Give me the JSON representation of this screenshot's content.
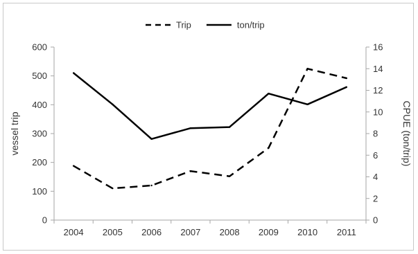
{
  "chart_data": {
    "type": "line",
    "categories": [
      "2004",
      "2005",
      "2006",
      "2007",
      "2008",
      "2009",
      "2010",
      "2011"
    ],
    "y_left": {
      "label": "vessel trip",
      "range": [
        0,
        600
      ],
      "ticks": [
        "0",
        "100",
        "200",
        "300",
        "400",
        "500",
        "600"
      ]
    },
    "y_right": {
      "label": "CPUE (ton/trip)",
      "range": [
        0,
        16
      ],
      "ticks": [
        "0",
        "2",
        "4",
        "6",
        "8",
        "10",
        "12",
        "14",
        "16"
      ]
    },
    "series": [
      {
        "name": "Trip",
        "axis": "left",
        "style": "dashed",
        "color": "#000000",
        "values": [
          188,
          110,
          120,
          170,
          152,
          250,
          525,
          492
        ]
      },
      {
        "name": "ton/trip",
        "axis": "right",
        "style": "solid",
        "color": "#000000",
        "values": [
          13.6,
          10.7,
          7.5,
          8.5,
          8.6,
          11.7,
          10.7,
          12.3
        ]
      }
    ],
    "legend": "top-center",
    "grid": false
  }
}
